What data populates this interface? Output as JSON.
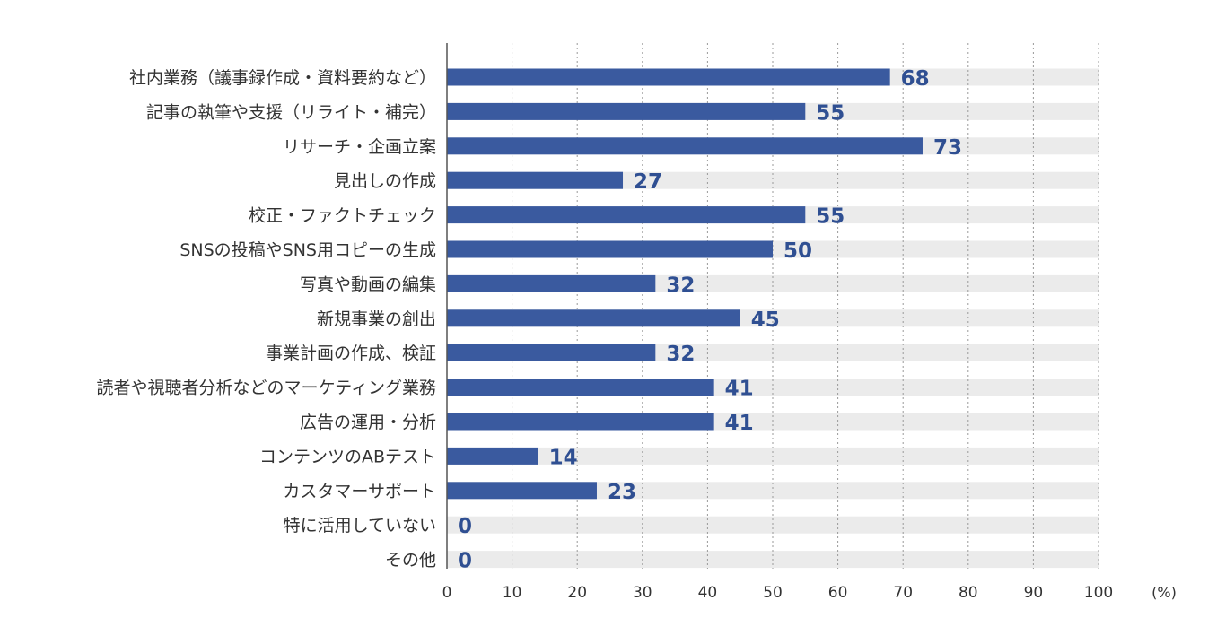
{
  "chart_data": {
    "type": "bar",
    "orientation": "horizontal",
    "categories": [
      "社内業務（議事録作成・資料要約など）",
      "記事の執筆や支援（リライト・補完）",
      "リサーチ・企画立案",
      "見出しの作成",
      "校正・ファクトチェック",
      "SNSの投稿やSNS用コピーの生成",
      "写真や動画の編集",
      "新規事業の創出",
      "事業計画の作成、検証",
      "読者や視聴者分析などのマーケティング業務",
      "広告の運用・分析",
      "コンテンツのABテスト",
      "カスタマーサポート",
      "特に活用していない",
      "その他"
    ],
    "values": [
      68,
      55,
      73,
      27,
      55,
      50,
      32,
      45,
      32,
      41,
      41,
      14,
      23,
      0,
      0
    ],
    "xlim": [
      0,
      100
    ],
    "x_ticks": [
      "0",
      "10",
      "20",
      "30",
      "40",
      "50",
      "60",
      "70",
      "80",
      "90",
      "100"
    ],
    "unit_label": "(%)",
    "grid": "vertical dotted",
    "colors": {
      "bar": "#3a5a9f",
      "track": "#ebebeb",
      "value_text": "#2f4f92",
      "grid": "#999999",
      "axis": "#555555"
    }
  }
}
